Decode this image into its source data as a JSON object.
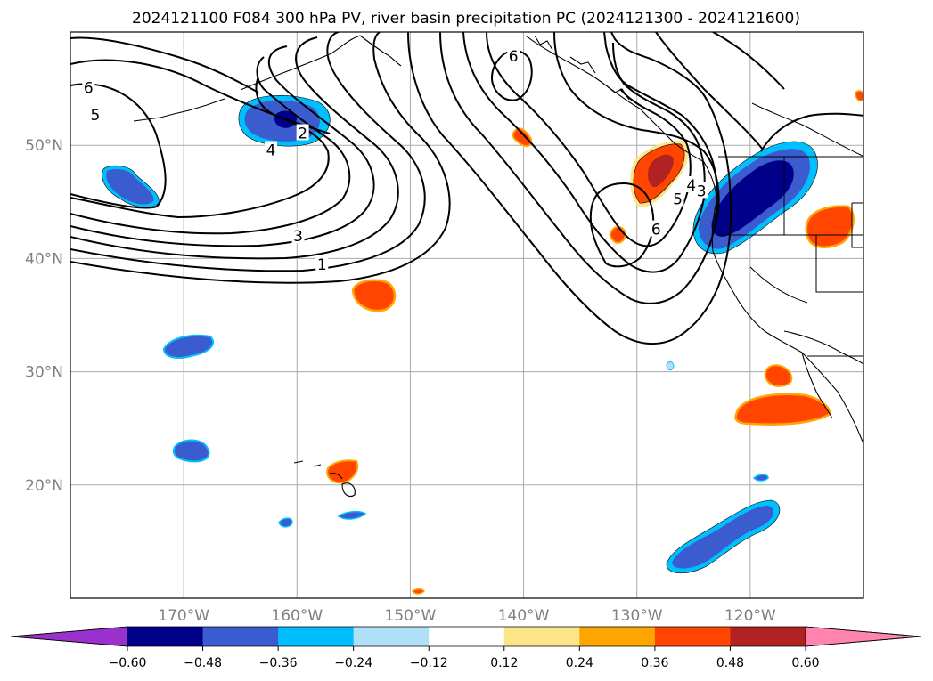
{
  "title": "2024121100 F084 300 hPa PV, river basin precipitation PC (2024121300 - 2024121600)",
  "map": {
    "lon_range": [
      -180,
      -110
    ],
    "lat_range": [
      10,
      60
    ],
    "lon_ticks": [
      {
        "lon": -170,
        "label": "170°W"
      },
      {
        "lon": -160,
        "label": "160°W"
      },
      {
        "lon": -150,
        "label": "150°W"
      },
      {
        "lon": -140,
        "label": "140°W"
      },
      {
        "lon": -130,
        "label": "130°W"
      },
      {
        "lon": -120,
        "label": "120°W"
      }
    ],
    "lat_ticks": [
      {
        "lat": 50,
        "label": "50°N"
      },
      {
        "lat": 40,
        "label": "40°N"
      },
      {
        "lat": 30,
        "label": "30°N"
      },
      {
        "lat": 20,
        "label": "20°N"
      }
    ],
    "grid": true,
    "contour_labels": [
      {
        "text": "6",
        "lon": -178.4,
        "lat": 55.0
      },
      {
        "text": "5",
        "lon": -177.8,
        "lat": 52.6
      },
      {
        "text": "4",
        "lon": -162.3,
        "lat": 49.5
      },
      {
        "text": "2",
        "lon": -159.5,
        "lat": 51.0
      },
      {
        "text": "3",
        "lon": -159.9,
        "lat": 41.9
      },
      {
        "text": "1",
        "lon": -157.8,
        "lat": 39.4
      },
      {
        "text": "6",
        "lon": -140.9,
        "lat": 57.8
      },
      {
        "text": "6",
        "lon": -128.3,
        "lat": 42.5
      },
      {
        "text": "5",
        "lon": -126.4,
        "lat": 45.2
      },
      {
        "text": "4",
        "lon": -125.2,
        "lat": 46.4
      },
      {
        "text": "3",
        "lon": -124.3,
        "lat": 45.9
      }
    ],
    "colorbar": {
      "ticks": [
        "−0.60",
        "−0.48",
        "−0.36",
        "−0.24",
        "−0.12",
        "0.12",
        "0.24",
        "0.36",
        "0.48",
        "0.60"
      ],
      "colors": {
        "under": "#9932cc",
        "neg_060": "#00008b",
        "neg_048": "#3a5ccf",
        "neg_036": "#00bfff",
        "neg_024": "#b0e0f8",
        "neutral": "#ffffff",
        "pos_012": "#fde68a",
        "pos_024": "#ffa500",
        "pos_036": "#ff4500",
        "pos_048": "#b22222",
        "over": "#ff85b0"
      }
    }
  }
}
